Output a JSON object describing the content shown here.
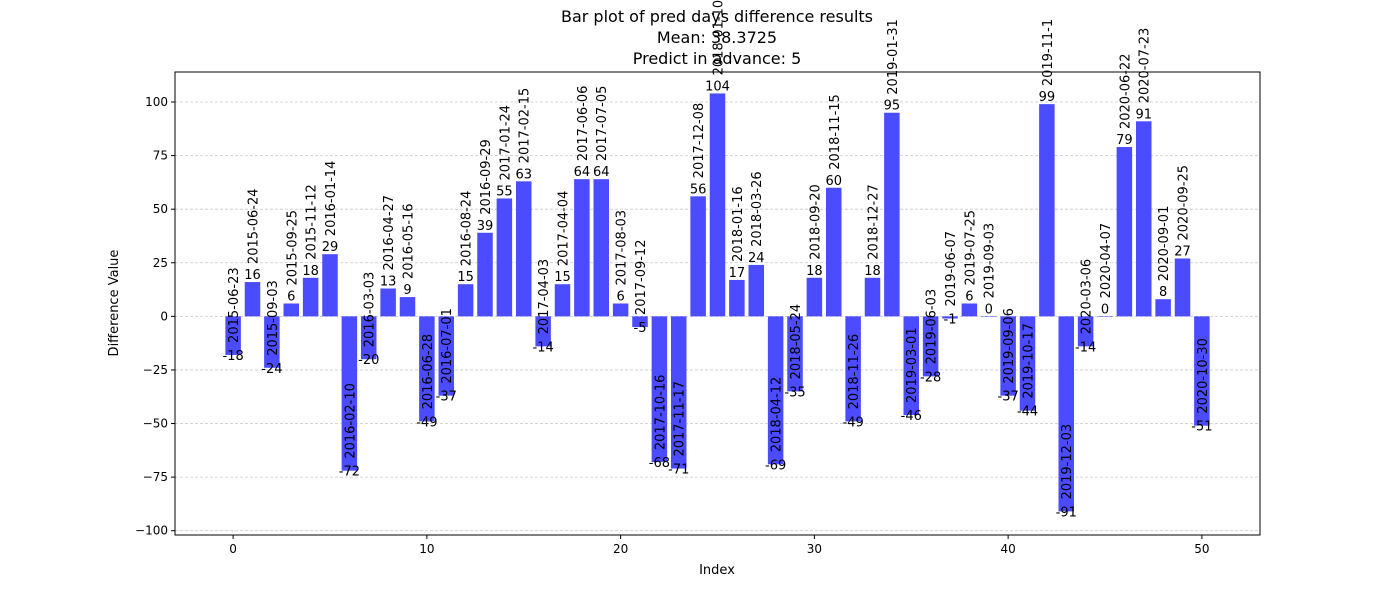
{
  "chart_data": {
    "type": "bar",
    "title_lines": [
      "Bar plot of pred days difference results",
      "Mean: 38.3725",
      "Predict in advance: 5"
    ],
    "xlabel": "Index",
    "ylabel": "Difference Value",
    "xlim": [
      -3,
      53
    ],
    "ylim": [
      -102,
      114
    ],
    "xticks": [
      0,
      10,
      20,
      30,
      40,
      50
    ],
    "yticks": [
      -100,
      -75,
      -50,
      -25,
      0,
      25,
      50,
      75,
      100
    ],
    "grid": "y-dashed",
    "bar_color": "#4b4bff",
    "x": [
      0,
      1,
      2,
      3,
      4,
      5,
      6,
      7,
      8,
      9,
      10,
      11,
      12,
      13,
      14,
      15,
      16,
      17,
      18,
      19,
      20,
      21,
      22,
      23,
      24,
      25,
      26,
      27,
      28,
      29,
      30,
      31,
      32,
      33,
      34,
      35,
      36,
      37,
      38,
      39,
      40,
      41,
      42,
      43,
      44,
      45,
      46,
      47,
      48,
      49,
      50
    ],
    "values": [
      -18,
      16,
      -24,
      6,
      18,
      29,
      -72,
      -20,
      13,
      9,
      -49,
      -37,
      15,
      39,
      55,
      63,
      -14,
      15,
      64,
      64,
      6,
      -5,
      -68,
      -71,
      56,
      104,
      17,
      24,
      -69,
      -35,
      18,
      60,
      -49,
      18,
      95,
      -46,
      -28,
      -1,
      6,
      0,
      -37,
      -44,
      99,
      -91,
      -14,
      0,
      79,
      91,
      8,
      27,
      -51
    ],
    "dates": [
      "2015-06-23",
      "2015-06-24",
      "2015-09-03",
      "2015-09-25",
      "2015-11-12",
      "2016-01-14",
      "2016-02-10",
      "2016-03-03",
      "2016-04-27",
      "2016-05-16",
      "2016-06-28",
      "2016-07-01",
      "2016-08-24",
      "2016-09-29",
      "2017-01-24",
      "2017-02-15",
      "2017-04-03",
      "2017-04-04",
      "2017-06-06",
      "2017-07-05",
      "2017-08-03",
      "2017-09-12",
      "2017-10-16",
      "2017-11-17",
      "2017-12-08",
      "2018-01-10",
      "2018-01-16",
      "2018-03-26",
      "2018-04-12",
      "2018-05-24",
      "2018-09-20",
      "2018-11-15",
      "2018-11-26",
      "2018-12-27",
      "2019-01-31",
      "2019-03-01",
      "2019-06-03",
      "2019-06-07",
      "2019-07-25",
      "2019-09-03",
      "2019-09-06",
      "2019-10-17",
      "2019-11-1",
      "2019-12-03",
      "2020-03-06",
      "2020-04-07",
      "2020-06-22",
      "2020-07-23",
      "2020-09-01",
      "2020-09-25",
      "2020-10-30"
    ]
  }
}
